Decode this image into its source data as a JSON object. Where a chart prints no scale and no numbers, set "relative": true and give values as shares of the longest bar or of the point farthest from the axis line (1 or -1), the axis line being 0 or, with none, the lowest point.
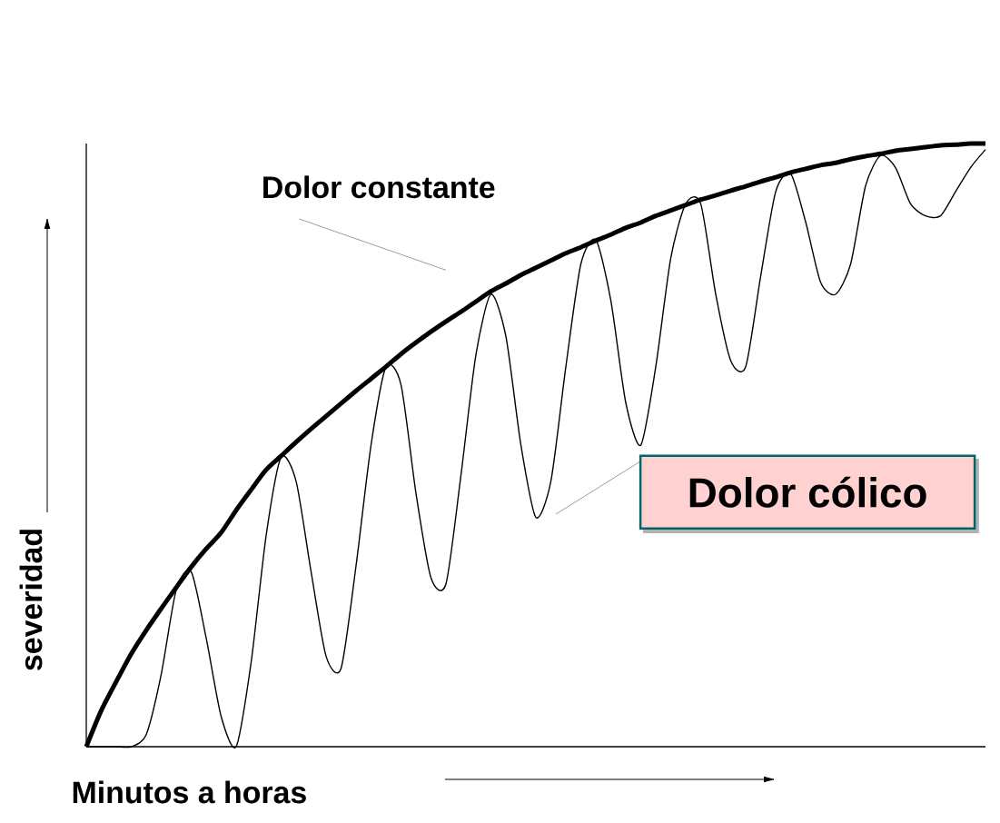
{
  "chart_data": {
    "type": "line",
    "relative": true,
    "xlabel": "Minutos a horas",
    "ylabel": "severidad",
    "categories": [
      null,
      null,
      null,
      null,
      null,
      null,
      null,
      null,
      null,
      null,
      null,
      null,
      null,
      null,
      null,
      null,
      null,
      null,
      null,
      null,
      null,
      null,
      null,
      null,
      null,
      null,
      null,
      null,
      null,
      null,
      null,
      null,
      null,
      null,
      null,
      null,
      null,
      null,
      null,
      null,
      null,
      null,
      null,
      null,
      null,
      null,
      null,
      null,
      null,
      null,
      null,
      null,
      null,
      null,
      null,
      null,
      null,
      null,
      null,
      null,
      null
    ],
    "series": [
      {
        "name": "Dolor constante",
        "color": "#000000",
        "values": [
          0,
          0.06,
          0.108,
          0.154,
          0.193,
          0.229,
          0.264,
          0.298,
          0.328,
          0.355,
          0.392,
          0.426,
          0.459,
          0.482,
          0.505,
          0.527,
          0.548,
          0.569,
          0.59,
          0.61,
          0.63,
          0.651,
          0.67,
          0.688,
          0.705,
          0.721,
          0.738,
          0.755,
          0.768,
          0.782,
          0.794,
          0.806,
          0.818,
          0.828,
          0.839,
          0.849,
          0.86,
          0.869,
          0.88,
          0.889,
          0.898,
          0.907,
          0.914,
          0.922,
          0.929,
          0.937,
          0.944,
          0.952,
          0.958,
          0.964,
          0.968,
          0.974,
          0.979,
          0.983,
          0.988,
          0.991,
          0.994,
          0.997,
          0.998,
          1,
          1
        ]
      },
      {
        "name": "Dolor cólico",
        "color": "#000000",
        "values": [
          0,
          0,
          0,
          0,
          0.02,
          0.12,
          0.26,
          0.29,
          0.18,
          0.05,
          0,
          0.14,
          0.35,
          0.48,
          0.44,
          0.29,
          0.15,
          0.13,
          0.3,
          0.5,
          0.63,
          0.6,
          0.42,
          0.28,
          0.27,
          0.45,
          0.65,
          0.75,
          0.68,
          0.5,
          0.38,
          0.44,
          0.63,
          0.8,
          0.84,
          0.74,
          0.57,
          0.5,
          0.63,
          0.81,
          0.9,
          0.9,
          0.75,
          0.64,
          0.63,
          0.78,
          0.92,
          0.95,
          0.87,
          0.77,
          0.75,
          0.8,
          0.93,
          0.98,
          0.96,
          0.9,
          0.88,
          0.88,
          0.92,
          0.96,
          0.99
        ]
      }
    ]
  }
}
